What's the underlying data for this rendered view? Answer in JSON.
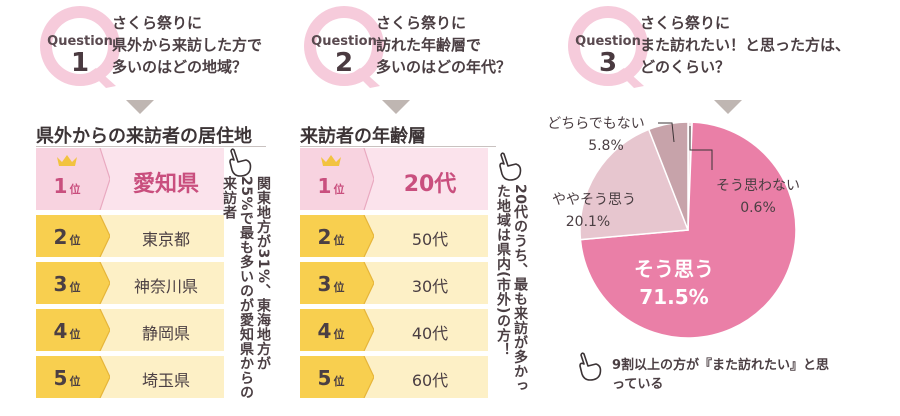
{
  "colors": {
    "pink": "#ee7ba6",
    "pink_light": "#f8d3e0",
    "pink_cell": "#fbe3ec",
    "yellow": "#f8cf4f",
    "yellow_light": "#fdf0c6",
    "gold": "#f2c340",
    "q_circle": "#f6cbdb",
    "slice_yes": "#ea7fa7",
    "slice_some": "#e7c6cf",
    "slice_neutral": "#c7a3aa",
    "slice_no": "#f2e4e8"
  },
  "q1": {
    "label": "Question",
    "num": "1",
    "lines": [
      "さくら祭りに",
      "県外から来訪した方で",
      "多いのはどの地域？"
    ]
  },
  "q2": {
    "label": "Question",
    "num": "2",
    "lines": [
      "さくら祭りに",
      "訪れた年齢層で",
      "多いのはどの年代？"
    ]
  },
  "q3": {
    "label": "Question",
    "num": "3",
    "lines": [
      "さくら祭りに",
      "また訪れたい！と思った方は、",
      "どのくらい？"
    ]
  },
  "section1": {
    "title": "県外からの来訪者の居住地",
    "rank_suffix": "位",
    "rows": [
      {
        "rank": "1",
        "value": "愛知県"
      },
      {
        "rank": "2",
        "value": "東京都"
      },
      {
        "rank": "3",
        "value": "神奈川県"
      },
      {
        "rank": "4",
        "value": "静岡県"
      },
      {
        "rank": "5",
        "value": "埼玉県"
      }
    ],
    "note": "関東地方が31%、東海地方が25%で最も多いのが愛知県からの来訪者"
  },
  "section2": {
    "title": "来訪者の年齢層",
    "rank_suffix": "位",
    "rows": [
      {
        "rank": "1",
        "value": "20代"
      },
      {
        "rank": "2",
        "value": "50代"
      },
      {
        "rank": "3",
        "value": "30代"
      },
      {
        "rank": "4",
        "value": "40代"
      },
      {
        "rank": "5",
        "value": "60代"
      }
    ],
    "note": "20代のうち、最も来訪が多かった地域は県内(市外)の方！"
  },
  "chart_data": {
    "type": "pie",
    "title": "",
    "slices": [
      {
        "label": "そう思う",
        "value": 71.5,
        "display": "71.5%",
        "color": "#ea7fa7"
      },
      {
        "label": "ややそう思う",
        "value": 20.1,
        "display": "20.1%",
        "color": "#e7c6cf"
      },
      {
        "label": "どちらでもない",
        "value": 5.8,
        "display": "5.8%",
        "color": "#c7a3aa"
      },
      {
        "label": "そう思わない",
        "value": 0.6,
        "display": "0.6%",
        "color": "#f2e4e8"
      }
    ]
  },
  "pie_note": "9割以上の方が『また訪れたい』と思っている"
}
